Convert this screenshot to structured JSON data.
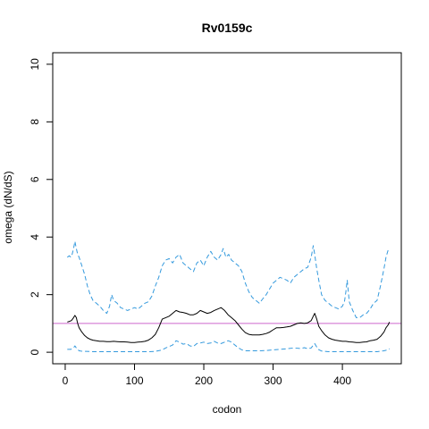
{
  "chart_data": {
    "type": "line",
    "title": "Rv0159c",
    "xlabel": "codon",
    "ylabel": "omega (dN/dS)",
    "xlim": [
      -18,
      485
    ],
    "ylim": [
      -0.4,
      10.4
    ],
    "xticks": [
      0,
      100,
      200,
      300,
      400
    ],
    "yticks": [
      0,
      2,
      4,
      6,
      8,
      10
    ],
    "grid": false,
    "reference_line": {
      "y": 1.0,
      "color": "#cc66cc"
    },
    "colors": {
      "mean": "#000000",
      "bounds": "#3399dd"
    },
    "series": [
      {
        "role": "upper",
        "style": "dashed",
        "x": [
          3,
          6,
          8,
          10,
          12,
          14,
          16,
          18,
          20,
          24,
          28,
          32,
          36,
          40,
          45,
          50,
          55,
          60,
          64,
          67,
          70,
          75,
          80,
          85,
          90,
          95,
          100,
          105,
          110,
          115,
          120,
          125,
          130,
          135,
          140,
          145,
          150,
          155,
          160,
          165,
          170,
          175,
          180,
          185,
          190,
          195,
          200,
          205,
          210,
          215,
          220,
          225,
          228,
          232,
          236,
          240,
          245,
          250,
          255,
          260,
          265,
          270,
          275,
          280,
          285,
          290,
          295,
          300,
          305,
          310,
          315,
          320,
          325,
          330,
          335,
          340,
          345,
          350,
          355,
          358,
          360,
          363,
          366,
          370,
          375,
          380,
          385,
          390,
          395,
          400,
          403,
          405,
          407,
          410,
          415,
          420,
          425,
          430,
          435,
          440,
          445,
          450,
          455,
          460,
          463,
          466,
          468
        ],
        "y": [
          3.3,
          3.35,
          3.3,
          3.4,
          3.6,
          3.85,
          3.6,
          3.4,
          3.3,
          3.0,
          2.7,
          2.3,
          2.0,
          1.8,
          1.7,
          1.6,
          1.45,
          1.35,
          1.6,
          2.0,
          1.8,
          1.7,
          1.55,
          1.5,
          1.45,
          1.5,
          1.55,
          1.5,
          1.6,
          1.7,
          1.75,
          1.95,
          2.3,
          2.6,
          3.0,
          3.2,
          3.25,
          3.1,
          3.3,
          3.4,
          3.1,
          3.0,
          2.9,
          2.8,
          3.1,
          3.2,
          3.0,
          3.3,
          3.5,
          3.3,
          3.2,
          3.4,
          3.6,
          3.3,
          3.4,
          3.2,
          3.1,
          3.0,
          2.8,
          2.4,
          2.1,
          1.9,
          1.8,
          1.7,
          1.85,
          2.0,
          2.2,
          2.4,
          2.5,
          2.6,
          2.55,
          2.5,
          2.4,
          2.6,
          2.7,
          2.8,
          2.9,
          2.95,
          3.3,
          3.7,
          3.4,
          2.9,
          2.5,
          2.0,
          1.8,
          1.7,
          1.6,
          1.55,
          1.5,
          1.6,
          1.75,
          2.1,
          2.5,
          1.75,
          1.45,
          1.2,
          1.2,
          1.3,
          1.35,
          1.5,
          1.7,
          1.8,
          2.3,
          2.9,
          3.3,
          3.55,
          3.6
        ]
      },
      {
        "role": "mean",
        "style": "solid",
        "x": [
          3,
          6,
          9,
          12,
          14,
          16,
          18,
          20,
          24,
          28,
          32,
          36,
          40,
          45,
          50,
          55,
          60,
          65,
          70,
          75,
          80,
          85,
          90,
          95,
          100,
          105,
          110,
          115,
          120,
          125,
          130,
          135,
          140,
          145,
          150,
          155,
          160,
          165,
          170,
          175,
          180,
          185,
          190,
          195,
          200,
          205,
          210,
          215,
          220,
          225,
          230,
          235,
          240,
          245,
          250,
          255,
          260,
          265,
          270,
          275,
          280,
          285,
          290,
          295,
          300,
          305,
          310,
          315,
          320,
          325,
          330,
          335,
          340,
          345,
          350,
          355,
          358,
          360,
          363,
          366,
          370,
          375,
          380,
          385,
          390,
          395,
          400,
          405,
          410,
          415,
          420,
          425,
          430,
          435,
          440,
          445,
          450,
          455,
          460,
          463,
          466,
          468
        ],
        "y": [
          1.05,
          1.07,
          1.1,
          1.2,
          1.28,
          1.2,
          1.0,
          0.85,
          0.7,
          0.58,
          0.5,
          0.45,
          0.42,
          0.4,
          0.38,
          0.38,
          0.37,
          0.37,
          0.38,
          0.37,
          0.36,
          0.36,
          0.35,
          0.34,
          0.34,
          0.35,
          0.36,
          0.38,
          0.42,
          0.5,
          0.62,
          0.85,
          1.15,
          1.2,
          1.25,
          1.35,
          1.45,
          1.4,
          1.38,
          1.35,
          1.3,
          1.3,
          1.35,
          1.45,
          1.4,
          1.35,
          1.38,
          1.45,
          1.5,
          1.55,
          1.45,
          1.3,
          1.2,
          1.1,
          0.95,
          0.8,
          0.68,
          0.62,
          0.6,
          0.6,
          0.6,
          0.62,
          0.65,
          0.7,
          0.78,
          0.85,
          0.85,
          0.86,
          0.88,
          0.9,
          0.95,
          1.0,
          1.02,
          1.0,
          1.02,
          1.1,
          1.25,
          1.35,
          1.15,
          0.9,
          0.75,
          0.6,
          0.5,
          0.45,
          0.42,
          0.4,
          0.38,
          0.38,
          0.36,
          0.35,
          0.34,
          0.34,
          0.35,
          0.36,
          0.4,
          0.42,
          0.45,
          0.55,
          0.7,
          0.85,
          0.95,
          1.05
        ]
      },
      {
        "role": "lower",
        "style": "dashed",
        "x": [
          3,
          8,
          12,
          14,
          16,
          20,
          25,
          30,
          40,
          50,
          60,
          70,
          80,
          90,
          100,
          110,
          120,
          130,
          140,
          145,
          150,
          155,
          160,
          165,
          170,
          175,
          180,
          185,
          190,
          195,
          200,
          205,
          210,
          215,
          220,
          225,
          230,
          235,
          240,
          245,
          250,
          255,
          260,
          270,
          280,
          290,
          300,
          310,
          320,
          330,
          340,
          345,
          350,
          355,
          358,
          360,
          365,
          370,
          380,
          390,
          400,
          410,
          420,
          430,
          440,
          450,
          460,
          465,
          468
        ],
        "y": [
          0.1,
          0.1,
          0.15,
          0.22,
          0.15,
          0.05,
          0.03,
          0.03,
          0.02,
          0.02,
          0.02,
          0.02,
          0.02,
          0.02,
          0.02,
          0.02,
          0.02,
          0.03,
          0.08,
          0.15,
          0.2,
          0.25,
          0.4,
          0.35,
          0.28,
          0.3,
          0.22,
          0.2,
          0.3,
          0.32,
          0.35,
          0.3,
          0.32,
          0.38,
          0.32,
          0.3,
          0.35,
          0.4,
          0.35,
          0.25,
          0.15,
          0.08,
          0.05,
          0.05,
          0.05,
          0.06,
          0.08,
          0.1,
          0.12,
          0.15,
          0.13,
          0.16,
          0.12,
          0.15,
          0.25,
          0.3,
          0.1,
          0.04,
          0.02,
          0.02,
          0.02,
          0.02,
          0.02,
          0.02,
          0.02,
          0.02,
          0.05,
          0.08,
          0.12
        ]
      }
    ]
  }
}
